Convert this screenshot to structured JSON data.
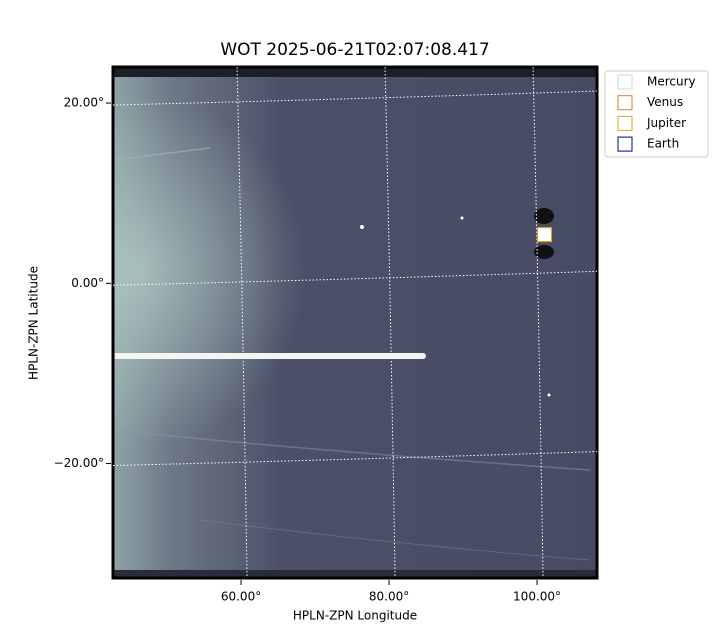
{
  "chart_data": {
    "type": "scatter",
    "title": "WOT 2025-06-21T02:07:08.417",
    "x_label": "HPLN-ZPN Longitude",
    "y_label": "HPLN-ZPN Latitude",
    "xlim": [
      42.7,
      108.1
    ],
    "ylim": [
      -32.7,
      24.0
    ],
    "xticks": [
      {
        "value": 60,
        "label": "60.00°"
      },
      {
        "value": 80,
        "label": "80.00°"
      },
      {
        "value": 100,
        "label": "100.00°"
      }
    ],
    "yticks": [
      {
        "value": -20,
        "label": "−20.00°"
      },
      {
        "value": 0,
        "label": "0.00°"
      },
      {
        "value": 20,
        "label": "20.00°"
      }
    ],
    "grid": true,
    "legend": "outside-upper-right",
    "series": [
      {
        "name": "Mercury",
        "color": "#d3d3d3",
        "x": [],
        "values": []
      },
      {
        "name": "Venus",
        "color": "#e07b39",
        "x": [
          101.0
        ],
        "values": [
          5.4
        ]
      },
      {
        "name": "Jupiter",
        "color": "#daa520",
        "x": [
          101.0
        ],
        "values": [
          5.4
        ]
      },
      {
        "name": "Earth",
        "color": "#000080",
        "x": [],
        "values": []
      }
    ]
  }
}
